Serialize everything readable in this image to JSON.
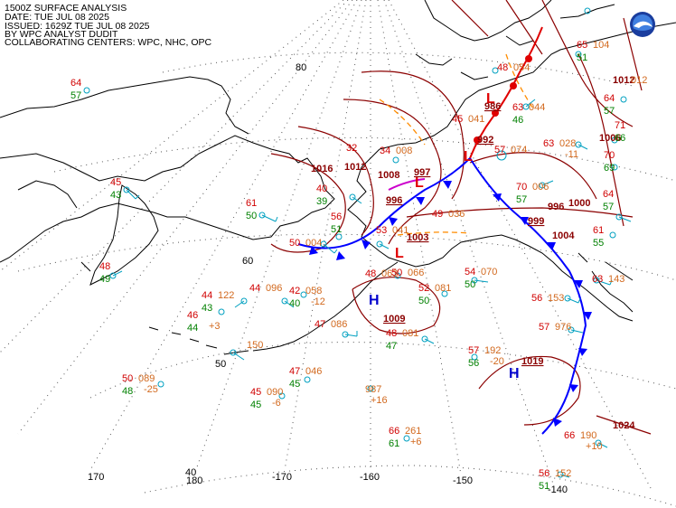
{
  "header": {
    "line1": "1500Z SURFACE ANALYSIS",
    "line2": "DATE: TUE JUL 08 2025",
    "line3": "ISSUED: 1629Z TUE JUL 08 2025",
    "line4": "BY WPC ANALYST DUDIT",
    "line5": "COLLABORATING CENTERS: WPC, NHC, OPC"
  },
  "logo": {
    "name": "noaa-logo",
    "colors": {
      "outer": "#1a3d9e",
      "inner": "#3f7fe0",
      "bird": "#ffffff"
    }
  },
  "colors": {
    "isobar": "#8b0000",
    "cold_front": "#0000ff",
    "warm_front": "#ff0000",
    "trough": "#ff8c00",
    "temp": "#d00000",
    "dewpoint": "#008000",
    "pressure": "#d2691e",
    "station": "#00a0c0",
    "coast": "#000000",
    "grid": "#555555"
  },
  "lat_labels": [
    "80",
    "60",
    "50",
    "40"
  ],
  "lon_labels": [
    "170",
    "180",
    "-170",
    "-160",
    "-150",
    "-140"
  ],
  "isobar_labels": [
    "1016",
    "1012",
    "1008",
    "1004",
    "1000",
    "996",
    "1006",
    "1012",
    "1024",
    "1004"
  ],
  "systems": [
    {
      "type": "L",
      "pressure": "992"
    },
    {
      "type": "L",
      "pressure": "997"
    },
    {
      "type": "L",
      "pressure": "996"
    },
    {
      "type": "L",
      "pressure": "1003"
    },
    {
      "type": "L",
      "pressure": "999"
    },
    {
      "type": "L",
      "pressure": "986"
    },
    {
      "type": "H",
      "pressure": "1009"
    },
    {
      "type": "H",
      "pressure": "1019"
    }
  ],
  "observations": [
    {
      "t": "64",
      "d": "57"
    },
    {
      "t": "45",
      "d": "43"
    },
    {
      "t": "48",
      "d": "49"
    },
    {
      "t": "61",
      "d": "50"
    },
    {
      "t": "44",
      "p": "122",
      "d": "43"
    },
    {
      "t": "46",
      "d": "44",
      "tend": "+3"
    },
    {
      "t": "44",
      "p": "096"
    },
    {
      "t": "42",
      "p": "058",
      "d": "40",
      "tend": "-12"
    },
    {
      "t": "50",
      "p": "004"
    },
    {
      "t": "50",
      "p": "089",
      "d": "48",
      "tend": "-25"
    },
    {
      "p": "150"
    },
    {
      "t": "47",
      "p": "086"
    },
    {
      "t": "47",
      "p": "046",
      "d": "45"
    },
    {
      "t": "45",
      "p": "090",
      "d": "45",
      "tend": "-6"
    },
    {
      "p": "987",
      "tend": "+16"
    },
    {
      "t": "48",
      "p": "081",
      "d": "47"
    },
    {
      "t": "48",
      "p": "063"
    },
    {
      "t": "52",
      "p": "081",
      "d": "50"
    },
    {
      "t": "54",
      "p": "070",
      "d": "50"
    },
    {
      "t": "57",
      "p": "192",
      "d": "56",
      "tend": "-20"
    },
    {
      "t": "66",
      "p": "261",
      "d": "61",
      "tend": "+6"
    },
    {
      "t": "66",
      "p": "190",
      "tend": "+10"
    },
    {
      "t": "56",
      "p": "152",
      "d": "51"
    },
    {
      "t": "56",
      "p": "153"
    },
    {
      "t": "57",
      "p": "976"
    },
    {
      "t": "70",
      "p": "006",
      "d": "57"
    },
    {
      "t": "63",
      "p": "028",
      "tend": "-11"
    },
    {
      "t": "63",
      "p": "044",
      "d": "46"
    },
    {
      "t": "57",
      "p": "074"
    },
    {
      "t": "48",
      "p": "054"
    },
    {
      "t": "45",
      "p": "041"
    },
    {
      "t": "49",
      "p": "036"
    },
    {
      "t": "56",
      "d": "51"
    },
    {
      "t": "53",
      "p": "041"
    },
    {
      "t": "34",
      "p": "008"
    },
    {
      "t": "32"
    },
    {
      "t": "40",
      "d": "39"
    },
    {
      "t": "64",
      "d": "57"
    },
    {
      "t": "71",
      "d": "66"
    },
    {
      "t": "70",
      "d": "69"
    },
    {
      "t": "65",
      "p": "104",
      "d": "51"
    },
    {
      "t": "64",
      "d": "57"
    },
    {
      "t": "61",
      "d": "55"
    },
    {
      "t": "63",
      "p": "143"
    },
    {
      "t": "50",
      "p": "066"
    },
    {
      "p": "012"
    }
  ]
}
